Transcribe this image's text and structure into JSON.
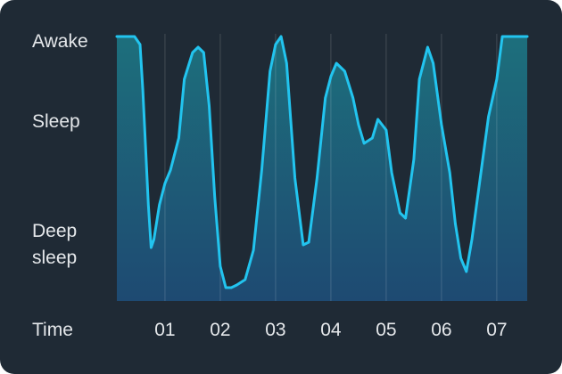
{
  "chart_data": {
    "type": "area",
    "x_label": "Time",
    "x": [
      0.13,
      0.3,
      0.45,
      0.55,
      0.6,
      0.7,
      0.75,
      0.8,
      0.9,
      1.0,
      1.1,
      1.25,
      1.35,
      1.5,
      1.6,
      1.7,
      1.8,
      1.9,
      2.0,
      2.1,
      2.2,
      2.3,
      2.45,
      2.6,
      2.75,
      2.9,
      3.0,
      3.1,
      3.2,
      3.35,
      3.5,
      3.6,
      3.75,
      3.9,
      4.0,
      4.1,
      4.25,
      4.4,
      4.5,
      4.6,
      4.75,
      4.85,
      5.0,
      5.1,
      5.25,
      5.35,
      5.5,
      5.6,
      5.75,
      5.85,
      6.0,
      6.15,
      6.25,
      6.35,
      6.45,
      6.55,
      6.7,
      6.85,
      7.0,
      7.1,
      7.2,
      7.35,
      7.55
    ],
    "values": [
      99,
      99,
      99,
      96,
      79,
      36,
      20,
      23,
      36,
      44,
      49,
      61,
      83,
      93,
      95,
      93,
      73,
      39,
      13,
      5,
      5,
      6,
      8,
      19,
      49,
      86,
      96,
      99,
      89,
      46,
      21,
      22,
      46,
      76,
      84,
      89,
      86,
      76,
      66,
      59,
      61,
      68,
      64,
      48,
      33,
      31,
      53,
      83,
      95,
      89,
      66,
      48,
      29,
      16,
      11,
      23,
      46,
      69,
      83,
      99,
      99,
      99,
      99
    ],
    "color": "#22c4ef",
    "xlim": [
      0.13,
      7.55
    ],
    "xticks": [
      {
        "value": 1,
        "label": "01"
      },
      {
        "value": 2,
        "label": "02"
      },
      {
        "value": 3,
        "label": "03"
      },
      {
        "value": 4,
        "label": "04"
      },
      {
        "value": 5,
        "label": "05"
      },
      {
        "value": 6,
        "label": "06"
      },
      {
        "value": 7,
        "label": "07"
      }
    ],
    "ylim": [
      0,
      100
    ],
    "yticks": [
      {
        "value": 97,
        "label": "Awake"
      },
      {
        "value": 67,
        "label": "Sleep"
      },
      {
        "value": 21,
        "label": "Deep sleep"
      }
    ],
    "grid": true
  }
}
